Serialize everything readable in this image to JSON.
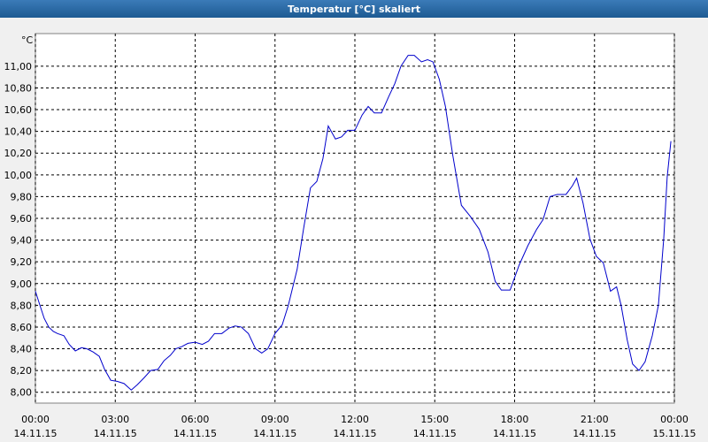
{
  "chart_data": {
    "type": "line",
    "title": "Temperatur [°C] skaliert",
    "y_unit": "°C",
    "xlim": [
      0,
      24
    ],
    "ylim": [
      7.9,
      11.3
    ],
    "grid": true,
    "xticks": [
      {
        "value": 0,
        "label": "00:00"
      },
      {
        "value": 3,
        "label": "03:00"
      },
      {
        "value": 6,
        "label": "06:00"
      },
      {
        "value": 9,
        "label": "09:00"
      },
      {
        "value": 12,
        "label": "12:00"
      },
      {
        "value": 15,
        "label": "15:00"
      },
      {
        "value": 18,
        "label": "18:00"
      },
      {
        "value": 21,
        "label": "21:00"
      },
      {
        "value": 24,
        "label": "00:00"
      }
    ],
    "xtick_dates": [
      "14.11.15",
      "14.11.15",
      "14.11.15",
      "14.11.15",
      "14.11.15",
      "14.11.15",
      "14.11.15",
      "14.11.15",
      "15.11.15"
    ],
    "yticks": [
      {
        "value": 8,
        "label": "8,00"
      },
      {
        "value": 8.2,
        "label": "8,20"
      },
      {
        "value": 8.4,
        "label": "8,40"
      },
      {
        "value": 8.6,
        "label": "8,60"
      },
      {
        "value": 8.8,
        "label": "8,80"
      },
      {
        "value": 9,
        "label": "9,00"
      },
      {
        "value": 9.2,
        "label": "9,20"
      },
      {
        "value": 9.4,
        "label": "9,40"
      },
      {
        "value": 9.6,
        "label": "9,60"
      },
      {
        "value": 9.8,
        "label": "9,80"
      },
      {
        "value": 10,
        "label": "10,00"
      },
      {
        "value": 10.2,
        "label": "10,20"
      },
      {
        "value": 10.4,
        "label": "10,40"
      },
      {
        "value": 10.6,
        "label": "10,60"
      },
      {
        "value": 10.8,
        "label": "10,80"
      },
      {
        "value": 11,
        "label": "11,00"
      }
    ],
    "x": [
      0,
      0.17,
      0.33,
      0.5,
      0.67,
      0.83,
      1.07,
      1.27,
      1.5,
      1.73,
      1.93,
      2.17,
      2.4,
      2.6,
      2.83,
      3.07,
      3.33,
      3.6,
      3.83,
      4.07,
      4.33,
      4.6,
      4.83,
      5.07,
      5.27,
      5.5,
      5.73,
      6,
      6.27,
      6.5,
      6.73,
      7,
      7.27,
      7.5,
      7.73,
      8,
      8.27,
      8.5,
      8.73,
      9,
      9.27,
      9.5,
      9.83,
      10.07,
      10.33,
      10.57,
      10.8,
      11,
      11.27,
      11.5,
      11.73,
      12,
      12.27,
      12.5,
      12.73,
      13,
      13.27,
      13.5,
      13.73,
      14,
      14.23,
      14.5,
      14.73,
      14.93,
      15.17,
      15.4,
      15.67,
      16,
      16.33,
      16.67,
      17,
      17.27,
      17.5,
      17.83,
      18.17,
      18.5,
      18.83,
      19.07,
      19.33,
      19.6,
      19.93,
      20.17,
      20.33,
      20.57,
      20.83,
      21.07,
      21.33,
      21.6,
      21.83,
      22,
      22.23,
      22.43,
      22.67,
      22.9,
      23.17,
      23.4,
      23.6,
      23.73,
      23.87
    ],
    "series": [
      {
        "color": "#0000cc",
        "values": [
          8.93,
          8.8,
          8.68,
          8.6,
          8.56,
          8.54,
          8.52,
          8.44,
          8.38,
          8.41,
          8.4,
          8.37,
          8.33,
          8.21,
          8.11,
          8.1,
          8.08,
          8.02,
          8.07,
          8.13,
          8.2,
          8.21,
          8.29,
          8.34,
          8.4,
          8.42,
          8.45,
          8.46,
          8.44,
          8.47,
          8.54,
          8.54,
          8.59,
          8.61,
          8.6,
          8.54,
          8.4,
          8.36,
          8.4,
          8.54,
          8.62,
          8.8,
          9.13,
          9.5,
          9.88,
          9.94,
          10.15,
          10.45,
          10.33,
          10.35,
          10.41,
          10.41,
          10.55,
          10.63,
          10.57,
          10.57,
          10.72,
          10.84,
          11,
          11.1,
          11.1,
          11.04,
          11.06,
          11.04,
          10.88,
          10.63,
          10.19,
          9.72,
          9.62,
          9.5,
          9.29,
          9.02,
          8.94,
          8.94,
          9.17,
          9.35,
          9.5,
          9.59,
          9.8,
          9.82,
          9.82,
          9.9,
          9.97,
          9.74,
          9.41,
          9.25,
          9.19,
          8.93,
          8.97,
          8.8,
          8.48,
          8.26,
          8.2,
          8.28,
          8.52,
          8.8,
          9.41,
          9.98,
          10.31
        ]
      }
    ]
  }
}
